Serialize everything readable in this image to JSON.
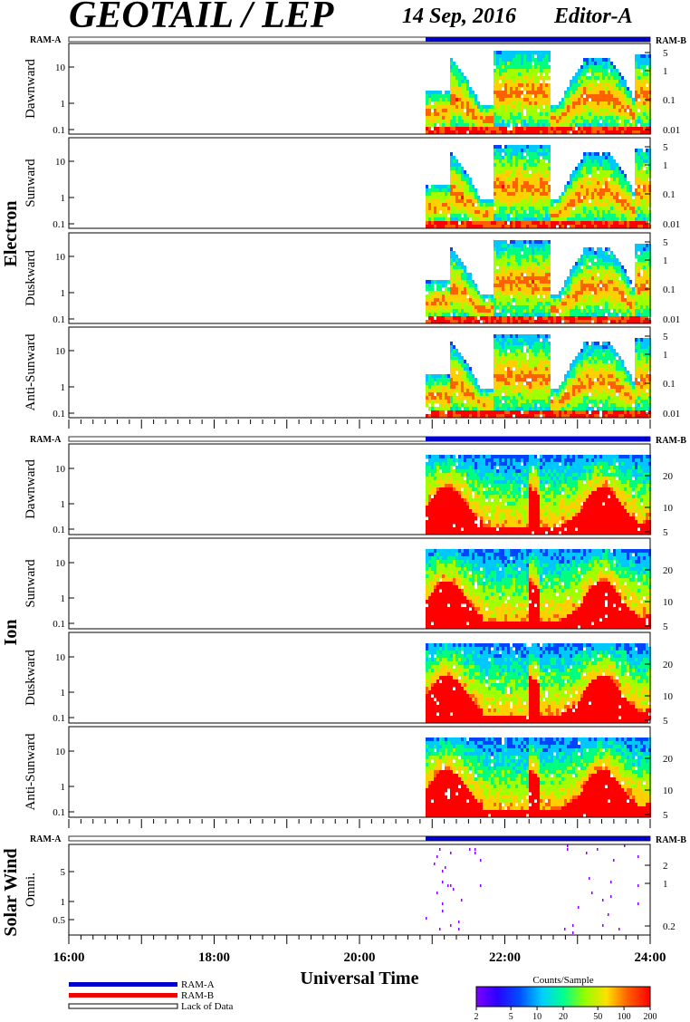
{
  "header": {
    "instrument": "GEOTAIL / LEP",
    "date": "14 Sep, 2016",
    "editor": "Editor-A"
  },
  "ram_a_label": "RAM-A",
  "ram_b_label": "RAM-B",
  "sections": [
    {
      "name": "Electron",
      "panels": [
        "Dawnward",
        "Sunward",
        "Duskward",
        "Anti-Sunward"
      ]
    },
    {
      "name": "Ion",
      "panels": [
        "Dawnward",
        "Sunward",
        "Duskward",
        "Anti-Sunward"
      ]
    },
    {
      "name": "Solar Wind",
      "panels": [
        "Omni."
      ]
    }
  ],
  "left_ticks": {
    "electron": [
      "10",
      "1",
      "0.1"
    ],
    "ion": [
      "10",
      "1",
      "0.1"
    ],
    "solar_wind": [
      "5",
      "1",
      "0.5"
    ]
  },
  "right_ticks": {
    "electron": [
      "5",
      "1",
      "0.1",
      "0.01"
    ],
    "ion": [
      "20",
      "10",
      "5"
    ],
    "solar_wind": [
      "2",
      "1",
      "0.2"
    ]
  },
  "time_ticks": [
    "16:00",
    "18:00",
    "20:00",
    "22:00",
    "24:00"
  ],
  "x_axis_title": "Universal Time",
  "legend": {
    "items": [
      {
        "label": "RAM-A",
        "color": "#0000cc"
      },
      {
        "label": "RAM-B",
        "color": "#ee0000"
      },
      {
        "label": "Lack of Data",
        "color": "#ffffff"
      }
    ]
  },
  "colorbar": {
    "title": "Counts/Sample",
    "ticks": [
      "2",
      "5",
      "10",
      "20",
      "50",
      "100",
      "200"
    ]
  },
  "chart_data": {
    "type": "heatmap",
    "title": "GEOTAIL / LEP",
    "xlabel": "Universal Time",
    "xlim": [
      "16:00",
      "24:00"
    ],
    "data_start": "20:55",
    "colorscale_range": [
      2,
      200
    ],
    "colors": [
      "#7f00ff",
      "#3300ff",
      "#0044ff",
      "#00c8ff",
      "#00ff80",
      "#a0ff00",
      "#ffd000",
      "#ff6000",
      "#ff0000"
    ],
    "ram_mode": "RAM-A"
  }
}
